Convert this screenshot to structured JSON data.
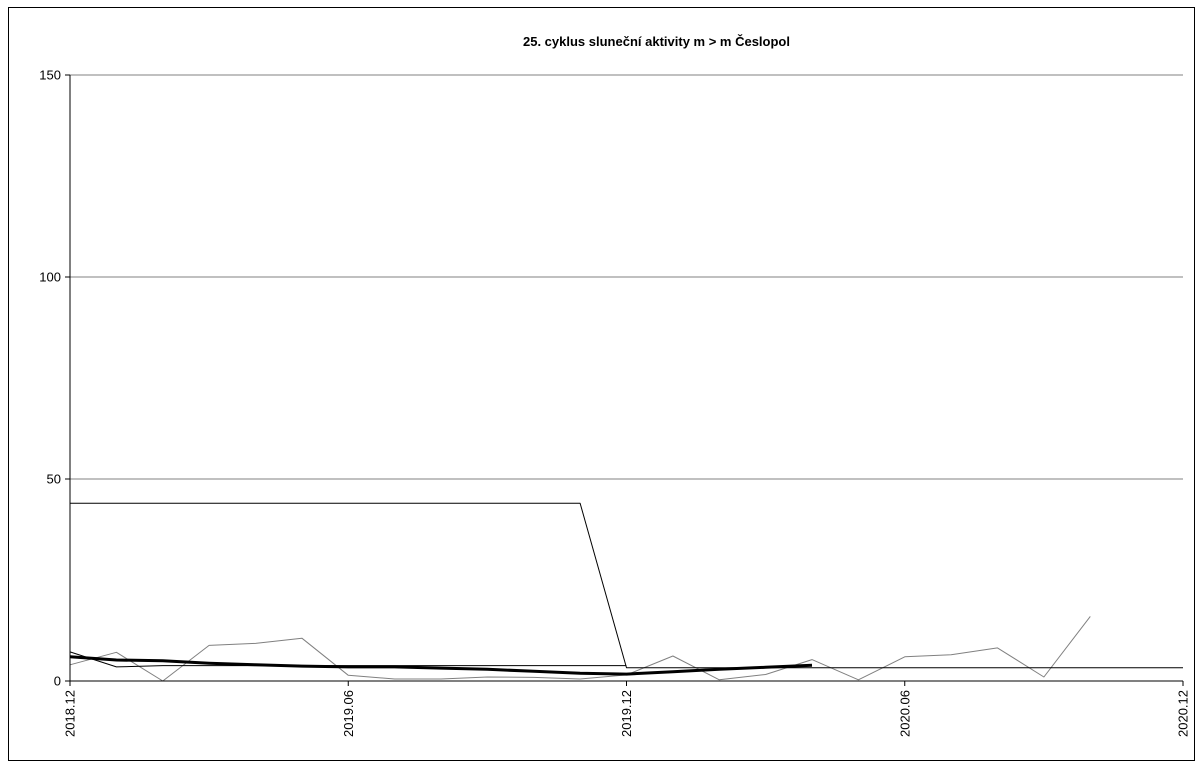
{
  "chart_data": {
    "type": "line",
    "title": "25. cyklus sluneční aktivity m > m Česlopol",
    "xlabel": "",
    "ylabel": "",
    "ylim": [
      0,
      150
    ],
    "xlim": [
      "2018.12",
      "2020.12"
    ],
    "yticks": [
      "0",
      "50",
      "100",
      "150"
    ],
    "xticks": [
      "2018.12",
      "2019.06",
      "2019.12",
      "2020.06",
      "2020.12"
    ],
    "grid": "horizontal",
    "legend": "none",
    "series": [
      {
        "color": "#808080",
        "width": "thin",
        "x": [
          "2018.12",
          "2019.01",
          "2019.02",
          "2019.03",
          "2019.04",
          "2019.05",
          "2019.06",
          "2019.07",
          "2019.08",
          "2019.09",
          "2019.10",
          "2019.11",
          "2019.12",
          "2020.01",
          "2020.02",
          "2020.03",
          "2020.04",
          "2020.05",
          "2020.06",
          "2020.07",
          "2020.08",
          "2020.09",
          "2020.10"
        ],
        "values": [
          4.0,
          7.1,
          0.0,
          8.8,
          9.3,
          10.6,
          1.4,
          0.5,
          0.5,
          1.0,
          0.9,
          0.5,
          1.5,
          6.2,
          0.3,
          1.6,
          5.3,
          0.3,
          6.0,
          6.5,
          8.2,
          1.0,
          16.0
        ]
      },
      {
        "color": "#000000",
        "width": "bold",
        "x": [
          "2018.12",
          "2019.01",
          "2019.02",
          "2019.03",
          "2019.04",
          "2019.05",
          "2019.06",
          "2019.07",
          "2019.08",
          "2019.09",
          "2019.10",
          "2019.11",
          "2019.12",
          "2020.01",
          "2020.02",
          "2020.03",
          "2020.04"
        ],
        "values": [
          6.0,
          5.2,
          5.0,
          4.4,
          4.0,
          3.7,
          3.5,
          3.5,
          3.2,
          2.9,
          2.4,
          1.9,
          1.7,
          2.3,
          2.9,
          3.4,
          3.9
        ]
      },
      {
        "color": "#000000",
        "width": "thin",
        "x": [
          "2018.12",
          "2019.01",
          "2019.02",
          "2019.03",
          "2019.04",
          "2019.05",
          "2019.06",
          "2019.07",
          "2019.08",
          "2019.09",
          "2019.10",
          "2019.11",
          "2019.12",
          "2020.01",
          "2020.02",
          "2020.03",
          "2020.04",
          "2020.05",
          "2020.06",
          "2020.07",
          "2020.08",
          "2020.09",
          "2020.10",
          "2020.11",
          "2020.12"
        ],
        "values": [
          44,
          44,
          44,
          44,
          44,
          44,
          44,
          44,
          44,
          44,
          44,
          44,
          3.3,
          3.3,
          3.3,
          3.3,
          3.3,
          3.3,
          3.3,
          3.3,
          3.3,
          3.3,
          3.3,
          3.3,
          3.3
        ]
      },
      {
        "color": "#000000",
        "width": "thin",
        "x": [
          "2018.12",
          "2019.01",
          "2019.02",
          "2019.03",
          "2019.04",
          "2019.05",
          "2019.06",
          "2019.07",
          "2019.08",
          "2019.09",
          "2019.10",
          "2019.11",
          "2019.12"
        ],
        "values": [
          7.2,
          3.5,
          3.8,
          3.8,
          3.8,
          3.8,
          3.8,
          3.8,
          3.8,
          3.8,
          3.8,
          3.8,
          3.8
        ]
      }
    ]
  }
}
